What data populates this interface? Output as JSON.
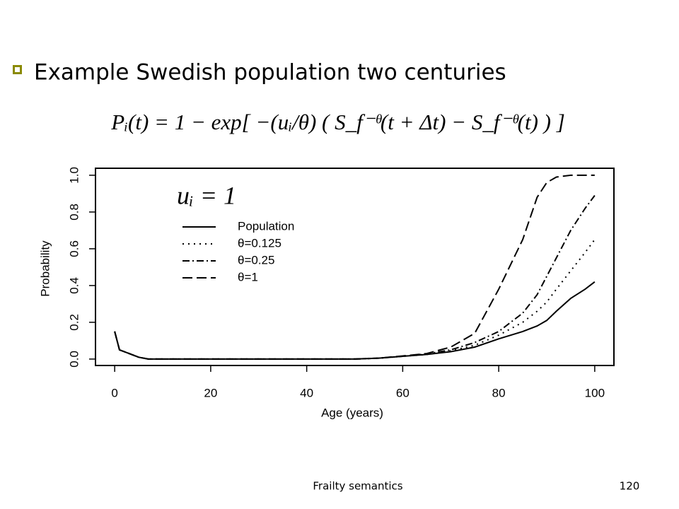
{
  "slide": {
    "bullet": "Example Swedish population two centuries",
    "formula": "Pᵢ(t) = 1 − exp[ −(uᵢ/θ) ( S_f⁻ᶿ(t + Δt) − S_f⁻ᶿ(t) ) ]",
    "footer": "Frailty semantics",
    "page_number": "120"
  },
  "chart_data": {
    "type": "line",
    "annotation": "uᵢ = 1",
    "x_label": "Age (years)",
    "y_label": "Probability",
    "x": [
      0,
      1,
      3,
      5,
      7,
      10,
      20,
      30,
      40,
      50,
      55,
      60,
      65,
      70,
      75,
      80,
      85,
      88,
      90,
      92,
      95,
      98,
      100
    ],
    "series": [
      {
        "name": "Population",
        "color": "#000000",
        "dash": "solid",
        "values": [
          0.15,
          0.05,
          0.03,
          0.01,
          0,
          0,
          0,
          0,
          0,
          0,
          0.005,
          0.015,
          0.025,
          0.04,
          0.065,
          0.11,
          0.15,
          0.18,
          0.21,
          0.26,
          0.33,
          0.38,
          0.42
        ]
      },
      {
        "name": "θ=0.125",
        "color": "#000000",
        "dash": "dotted",
        "values": [
          0.15,
          0.05,
          0.03,
          0.01,
          0,
          0,
          0,
          0,
          0,
          0,
          0.005,
          0.015,
          0.025,
          0.045,
          0.075,
          0.13,
          0.2,
          0.26,
          0.31,
          0.38,
          0.48,
          0.58,
          0.65
        ]
      },
      {
        "name": "θ=0.25",
        "color": "#000000",
        "dash": "dashdot",
        "values": [
          0.15,
          0.05,
          0.03,
          0.01,
          0,
          0,
          0,
          0,
          0,
          0,
          0.005,
          0.015,
          0.028,
          0.05,
          0.09,
          0.15,
          0.25,
          0.35,
          0.45,
          0.55,
          0.7,
          0.82,
          0.89
        ]
      },
      {
        "name": "θ=1",
        "color": "#000000",
        "dash": "dashed",
        "values": [
          0.15,
          0.05,
          0.03,
          0.01,
          0,
          0,
          0,
          0,
          0,
          0,
          0.005,
          0.017,
          0.03,
          0.065,
          0.14,
          0.38,
          0.65,
          0.88,
          0.96,
          0.99,
          1,
          1,
          1
        ]
      }
    ],
    "xlim": [
      -4,
      104
    ],
    "ylim": [
      -0.035,
      1.038
    ],
    "xticks": [
      0,
      20,
      40,
      60,
      80,
      100
    ],
    "yticks": [
      {
        "value": 0,
        "label": "0.0"
      },
      0.2,
      0.4,
      0.6,
      0.8,
      {
        "value": 1,
        "label": "1.0"
      }
    ]
  }
}
